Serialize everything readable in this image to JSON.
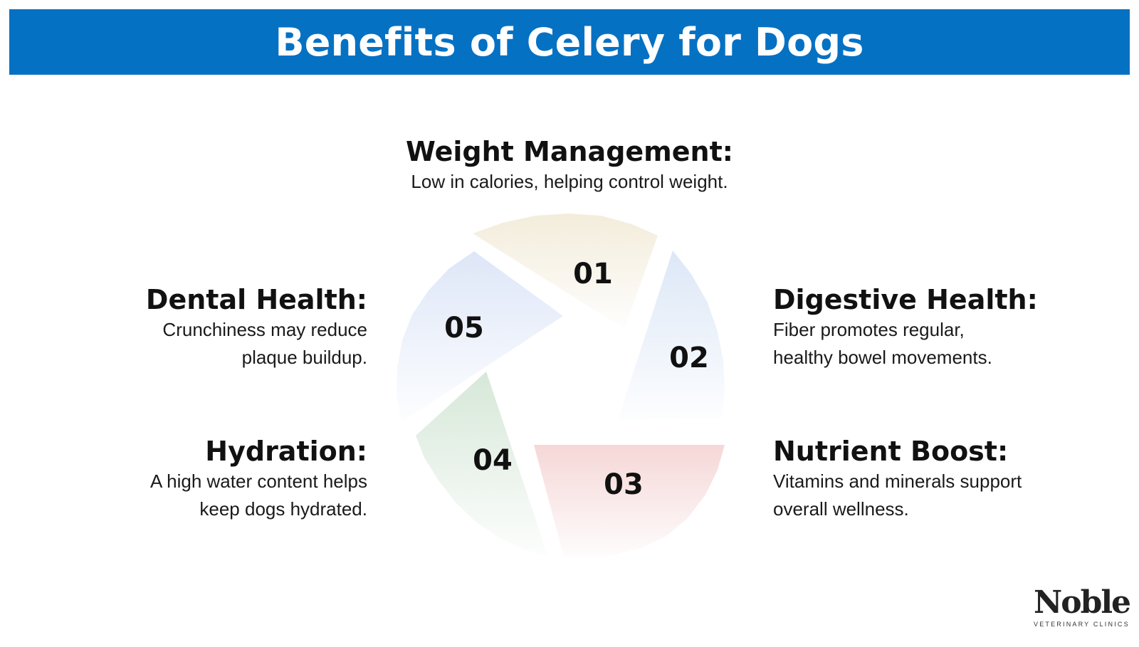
{
  "title": "Benefits of Celery for Dogs",
  "benefits": [
    {
      "number": "01",
      "heading": "Weight Management:",
      "description": "Low in calories, helping control weight.",
      "color": "#efe6cf"
    },
    {
      "number": "02",
      "heading": "Digestive Health:",
      "description_lines": [
        "Fiber promotes regular,",
        "healthy bowel movements."
      ],
      "color": "#d6e3f5"
    },
    {
      "number": "03",
      "heading": "Nutrient Boost:",
      "description_lines": [
        "Vitamins and minerals support",
        "overall wellness."
      ],
      "color": "#f4d0d0"
    },
    {
      "number": "04",
      "heading": "Hydration:",
      "description_lines": [
        "A high water content helps",
        "keep dogs hydrated."
      ],
      "color": "#cfe3d1"
    },
    {
      "number": "05",
      "heading": "Dental Health:",
      "description_lines": [
        "Crunchiness may reduce",
        "plaque buildup."
      ],
      "color": "#d8e2f6"
    }
  ],
  "logo": {
    "brand": "Noble",
    "tagline": "VETERINARY CLINICS"
  },
  "colors": {
    "banner": "#0571c3",
    "banner_text": "#ffffff",
    "text": "#111111"
  }
}
